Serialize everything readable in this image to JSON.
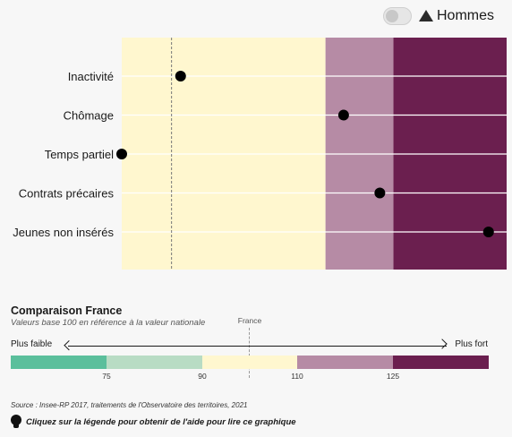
{
  "toggle": {
    "label": "Hommes",
    "on": false
  },
  "chart_data": {
    "type": "scatter",
    "categories": [
      "Inactivité",
      "Chômage",
      "Temps partiel",
      "Contrats précaires",
      "Jeunes non insérés"
    ],
    "values": [
      78,
      114,
      65,
      122,
      146
    ],
    "xlim": [
      65,
      150
    ],
    "reference_value": 76,
    "band_breaks": [
      90,
      110,
      125
    ],
    "band_colors": [
      "#fff7cf",
      "#b68ba5",
      "#6b1f4f"
    ],
    "gridlines": true
  },
  "legend": {
    "title": "Comparaison France",
    "subtitle": "Valeurs base 100 en référence à la valeur nationale",
    "reference_label": "France",
    "low_label": "Plus faible",
    "high_label": "Plus fort",
    "colors": [
      "#5bbf9c",
      "#b8dcc4",
      "#fff7cf",
      "#b68ba5",
      "#6b1f4f"
    ],
    "ticks": [
      "75",
      "90",
      "110",
      "125"
    ]
  },
  "source": "Source : Insee-RP 2017,  traitements de l'Observatoire des territoires, 2021",
  "help_text": "Cliquez sur la légende pour obtenir de l'aide pour lire ce graphique"
}
